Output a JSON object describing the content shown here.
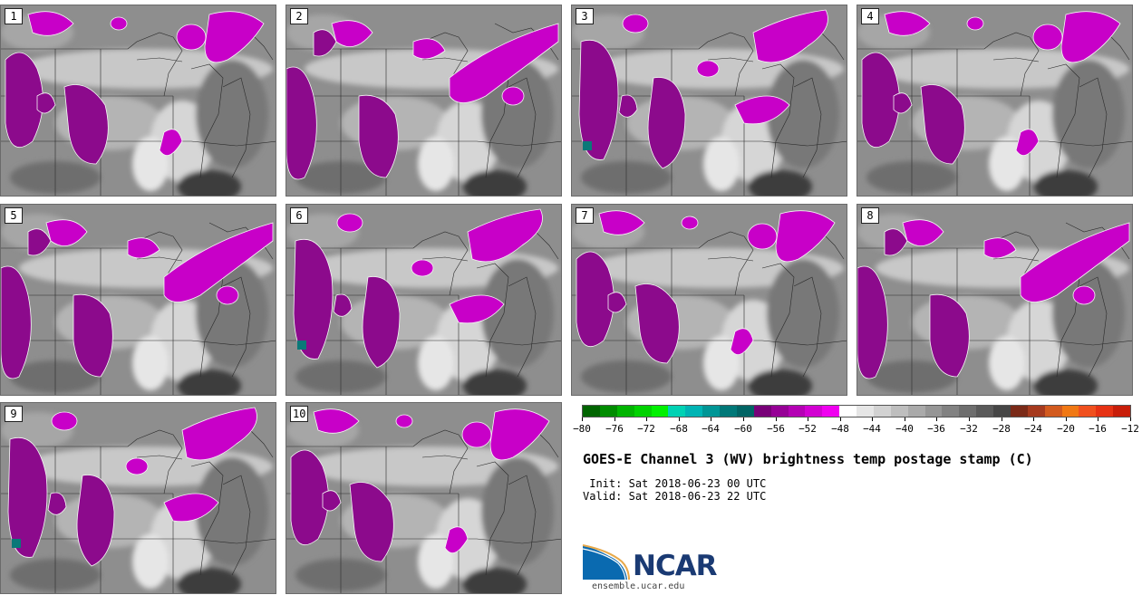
{
  "title": "GOES-E Channel 3 (WV) brightness temp postage stamp (C)",
  "init_label": " Init:",
  "init_value": "Sat 2018-06-23 00 UTC",
  "valid_label": "Valid:",
  "valid_value": "Sat 2018-06-23 22 UTC",
  "panels": [
    {
      "label": "1"
    },
    {
      "label": "2"
    },
    {
      "label": "3"
    },
    {
      "label": "4"
    },
    {
      "label": "5"
    },
    {
      "label": "6"
    },
    {
      "label": "7"
    },
    {
      "label": "8"
    },
    {
      "label": "9"
    },
    {
      "label": "10"
    }
  ],
  "colorbar": {
    "colors": [
      "#006400",
      "#008c00",
      "#00b400",
      "#00d200",
      "#00f000",
      "#00d2b4",
      "#00b4b4",
      "#009696",
      "#007878",
      "#006464",
      "#780078",
      "#960096",
      "#b400b4",
      "#d200d2",
      "#f000f0",
      "#ffffff",
      "#e6e6e6",
      "#d2d2d2",
      "#bebebe",
      "#aaaaaa",
      "#969696",
      "#828282",
      "#6e6e6e",
      "#5a5a5a",
      "#464646",
      "#7a2a18",
      "#a63a1e",
      "#d25a1e",
      "#f07814",
      "#f0501e",
      "#e63214",
      "#c81e0a"
    ],
    "min": -80,
    "max": -12,
    "tick_labels": [
      "-80",
      "-76",
      "-72",
      "-68",
      "-64",
      "-60",
      "-56",
      "-52",
      "-48",
      "-44",
      "-40",
      "-36",
      "-32",
      "-28",
      "-24",
      "-20",
      "-16",
      "-12"
    ]
  },
  "logo": {
    "word": "NCAR",
    "url": "ensemble.ucar.edu"
  }
}
